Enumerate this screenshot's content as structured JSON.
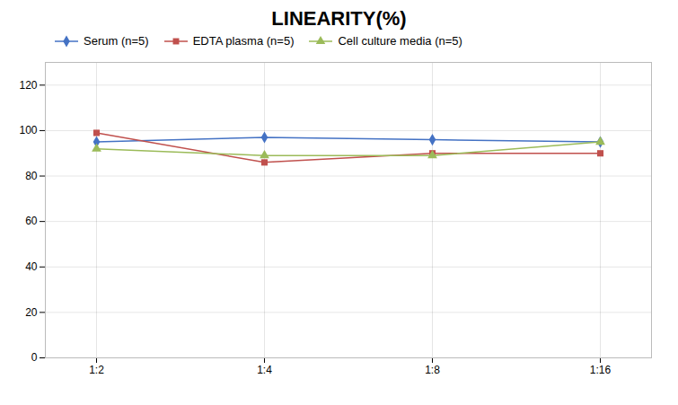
{
  "chart_data": {
    "type": "line",
    "title": "LINEARITY(%)",
    "categories": [
      "1:2",
      "1:4",
      "1:8",
      "1:16"
    ],
    "series": [
      {
        "name": "Serum (n=5)",
        "color": "#4472C4",
        "marker": "diamond",
        "values": [
          95,
          97,
          96,
          95
        ]
      },
      {
        "name": "EDTA plasma (n=5)",
        "color": "#C0504D",
        "marker": "square",
        "values": [
          99,
          86,
          90,
          90
        ]
      },
      {
        "name": "Cell culture media (n=5)",
        "color": "#9BBB59",
        "marker": "triangle",
        "values": [
          92,
          89,
          89,
          95
        ]
      }
    ],
    "ylim": [
      0,
      130
    ],
    "yticks": [
      0,
      20,
      40,
      60,
      80,
      100,
      120
    ],
    "grid": true,
    "legend": "top"
  }
}
